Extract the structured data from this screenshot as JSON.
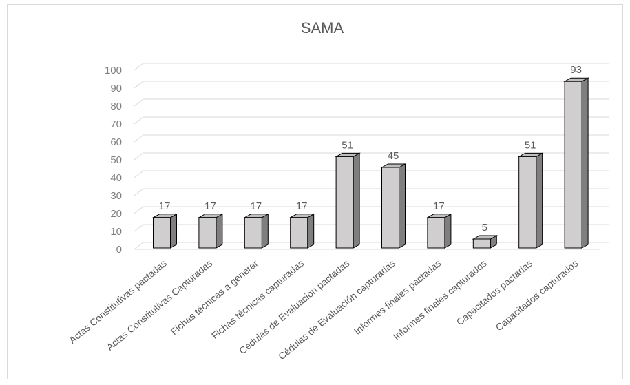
{
  "chart_data": {
    "type": "bar",
    "title": "SAMA",
    "categories": [
      "Actas Constitutivas pactadas",
      "Actas Constitutivas Capturadas",
      "Fichas técnicas a generar",
      "Fichas técnicas capturadas",
      "Cédulas de Evaluación pactadas",
      "Cédulas de Evaluación capturadas",
      "Informes finales pactadas",
      "Informes finales capturados",
      "Capacitados pactadas",
      "Capacitados capturados"
    ],
    "values": [
      17,
      17,
      17,
      17,
      51,
      45,
      17,
      5,
      51,
      93
    ],
    "ylim": [
      0,
      100
    ],
    "yticks": [
      0,
      10,
      20,
      30,
      40,
      50,
      60,
      70,
      80,
      90,
      100
    ],
    "grid": true,
    "legend": "none",
    "style": "3d-column",
    "colors": {
      "bar_front": "#d0cece",
      "bar_side": "#7f7f7f",
      "bar_top": "#bfbfbf",
      "bar_edge": "#000000",
      "grid": "#d9d9d9",
      "text": "#595959"
    }
  }
}
